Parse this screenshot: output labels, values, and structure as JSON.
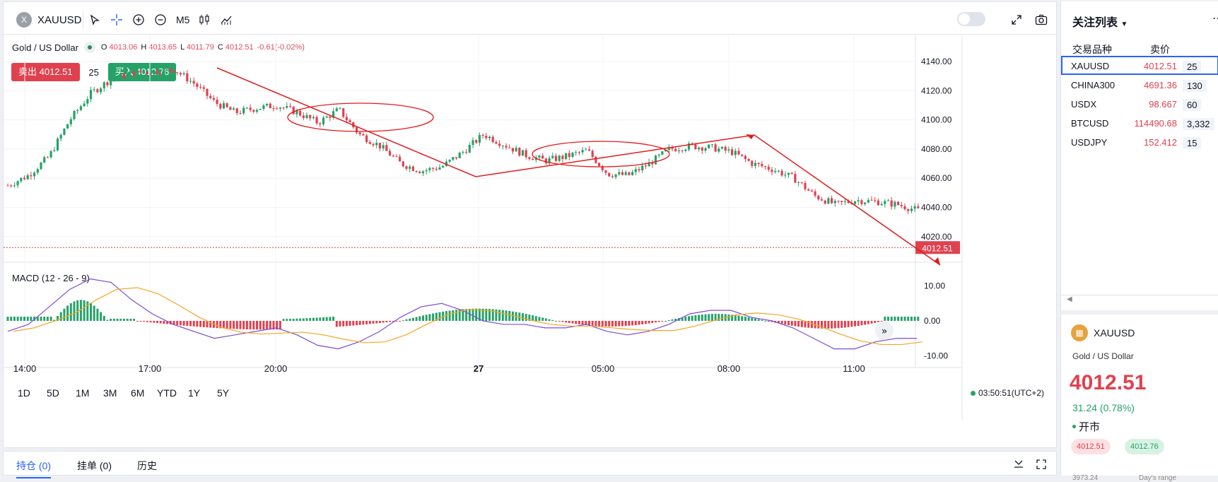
{
  "toolbar": {
    "symbol_badge": "X",
    "symbol": "XAUUSD",
    "interval": "M5"
  },
  "legend": {
    "name": "Gold / US Dollar",
    "o_label": "O",
    "o": "4013.06",
    "h_label": "H",
    "h": "4013.65",
    "l_label": "L",
    "l": "4011.79",
    "c_label": "C",
    "c": "4012.51",
    "change": "-0.61(-0.02%)"
  },
  "trade": {
    "sell_label": "卖出 4012.51",
    "quantity": "25",
    "buy_label": "买入 4012.76"
  },
  "price_axis": [
    "4140.00",
    "4120.00",
    "4100.00",
    "4080.00",
    "4060.00",
    "4040.00",
    "4020.00"
  ],
  "current_price_tag": "4012.51",
  "macd": {
    "label": "MACD (12 - 26 - 9)",
    "axis": [
      "10.00",
      "0.00",
      "-10.00"
    ]
  },
  "time_axis": [
    "14:00",
    "17:00",
    "20:00",
    "27",
    "05:00",
    "08:00",
    "11:00"
  ],
  "timeframes": [
    "1D",
    "5D",
    "1M",
    "3M",
    "6M",
    "YTD",
    "1Y",
    "5Y"
  ],
  "clock": "03:50:51(UTC+2)",
  "bottom_tabs": [
    "持仓 (0)",
    "挂单 (0)",
    "历史"
  ],
  "watchlist": {
    "title": "关注列表",
    "col_symbol": "交易品种",
    "col_bid": "卖价",
    "rows": [
      {
        "symbol": "XAUUSD",
        "price": "4012.51",
        "spread": "25"
      },
      {
        "symbol": "CHINA300",
        "price": "4691.36",
        "spread": "130"
      },
      {
        "symbol": "USDX",
        "price": "98.667",
        "spread": "60"
      },
      {
        "symbol": "BTCUSD",
        "price": "114490.68",
        "spread": "3,332"
      },
      {
        "symbol": "USDJPY",
        "price": "152.412",
        "spread": "15"
      }
    ]
  },
  "detail": {
    "symbol": "XAUUSD",
    "name": "Gold / US Dollar",
    "price": "4012.51",
    "change": "31.24 (0.78%)",
    "status": "开市",
    "bid": "4012.51",
    "ask": "4012.76",
    "low": "3973.24",
    "range_label": "Day's range"
  },
  "colors": {
    "up": "#26a269",
    "down": "#e0414f",
    "accent": "#2962ff"
  },
  "chart_data": {
    "type": "candlestick",
    "y_range": [
      4010,
      4145
    ],
    "approx_close_path": [
      4055,
      4062,
      4075,
      4100,
      4118,
      4128,
      4132,
      4133,
      4135,
      4125,
      4112,
      4105,
      4108,
      4110,
      4105,
      4098,
      4107,
      4090,
      4082,
      4070,
      4065,
      4068,
      4078,
      4090,
      4083,
      4076,
      4072,
      4075,
      4079,
      4063,
      4062,
      4070,
      4080,
      4082,
      4081,
      4078,
      4070,
      4066,
      4060,
      4048,
      4042,
      4045,
      4044,
      4042,
      4038
    ]
  }
}
